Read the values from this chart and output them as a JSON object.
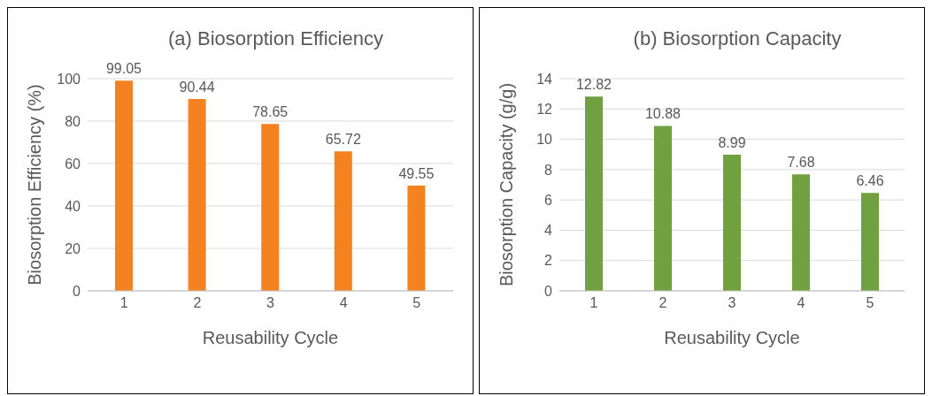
{
  "chart_data": [
    {
      "type": "bar",
      "title": "(a) Biosorption Efficiency",
      "xlabel": "Reusability Cycle",
      "ylabel": "Biosorption Efficiency (%)",
      "categories": [
        "1",
        "2",
        "3",
        "4",
        "5"
      ],
      "values": [
        99.05,
        90.44,
        78.65,
        65.72,
        49.55
      ],
      "color": "#f58220",
      "ylim": [
        0,
        100
      ],
      "yticks": [
        0,
        20,
        40,
        60,
        80,
        100
      ],
      "grid": "y",
      "data_labels": true
    },
    {
      "type": "bar",
      "title": "(b) Biosorption Capacity",
      "xlabel": "Reusability Cycle",
      "ylabel": "Biosorption Capacity (g/g)",
      "categories": [
        "1",
        "2",
        "3",
        "4",
        "5"
      ],
      "values": [
        12.82,
        10.88,
        8.99,
        7.68,
        6.46
      ],
      "color": "#70a040",
      "ylim": [
        0,
        14
      ],
      "yticks": [
        0,
        2,
        4,
        6,
        8,
        10,
        12,
        14
      ],
      "grid": "y",
      "data_labels": true
    }
  ]
}
